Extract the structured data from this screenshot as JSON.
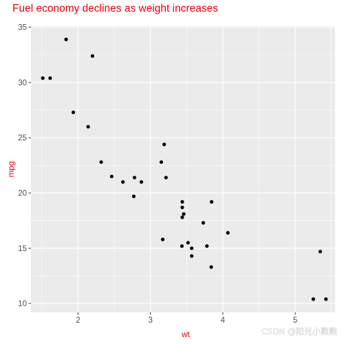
{
  "chart_data": {
    "type": "scatter",
    "title": "Fuel economy declines as weight increases",
    "xlabel": "wt",
    "ylabel": "mpg",
    "xlim": [
      1.35,
      5.55
    ],
    "ylim": [
      9.2,
      35.1
    ],
    "x_ticks": [
      2,
      3,
      4,
      5
    ],
    "y_ticks": [
      10,
      15,
      20,
      25,
      30,
      35
    ],
    "x_tick_labels": [
      "2",
      "3",
      "4",
      "5"
    ],
    "y_tick_labels": [
      "10",
      "15",
      "20",
      "25",
      "30",
      "35"
    ],
    "grid": true,
    "legend": "none",
    "points": [
      {
        "x": 2.62,
        "y": 21.0
      },
      {
        "x": 2.875,
        "y": 21.0
      },
      {
        "x": 2.32,
        "y": 22.8
      },
      {
        "x": 3.215,
        "y": 21.4
      },
      {
        "x": 3.44,
        "y": 18.7
      },
      {
        "x": 3.46,
        "y": 18.1
      },
      {
        "x": 3.57,
        "y": 14.3
      },
      {
        "x": 3.19,
        "y": 24.4
      },
      {
        "x": 3.15,
        "y": 22.8
      },
      {
        "x": 3.44,
        "y": 19.2
      },
      {
        "x": 3.44,
        "y": 17.8
      },
      {
        "x": 4.07,
        "y": 16.4
      },
      {
        "x": 3.73,
        "y": 17.3
      },
      {
        "x": 3.78,
        "y": 15.2
      },
      {
        "x": 5.25,
        "y": 10.4
      },
      {
        "x": 5.424,
        "y": 10.4
      },
      {
        "x": 5.345,
        "y": 14.7
      },
      {
        "x": 2.2,
        "y": 32.4
      },
      {
        "x": 1.615,
        "y": 30.4
      },
      {
        "x": 1.835,
        "y": 33.9
      },
      {
        "x": 2.465,
        "y": 21.5
      },
      {
        "x": 3.52,
        "y": 15.5
      },
      {
        "x": 3.435,
        "y": 15.2
      },
      {
        "x": 3.84,
        "y": 13.3
      },
      {
        "x": 3.845,
        "y": 19.2
      },
      {
        "x": 1.935,
        "y": 27.3
      },
      {
        "x": 2.14,
        "y": 26.0
      },
      {
        "x": 1.513,
        "y": 30.4
      },
      {
        "x": 3.17,
        "y": 15.8
      },
      {
        "x": 2.77,
        "y": 19.7
      },
      {
        "x": 3.57,
        "y": 15.0
      },
      {
        "x": 2.78,
        "y": 21.4
      }
    ],
    "colors": {
      "panel_background": "#ebebeb",
      "gridline": "#ffffff",
      "point": "#000000",
      "title": "#e8000b",
      "axis_label": "#e8000b",
      "tick_label": "#4d4d4d"
    }
  },
  "watermark": {
    "text": "CSDN @阳光小熊熊"
  }
}
